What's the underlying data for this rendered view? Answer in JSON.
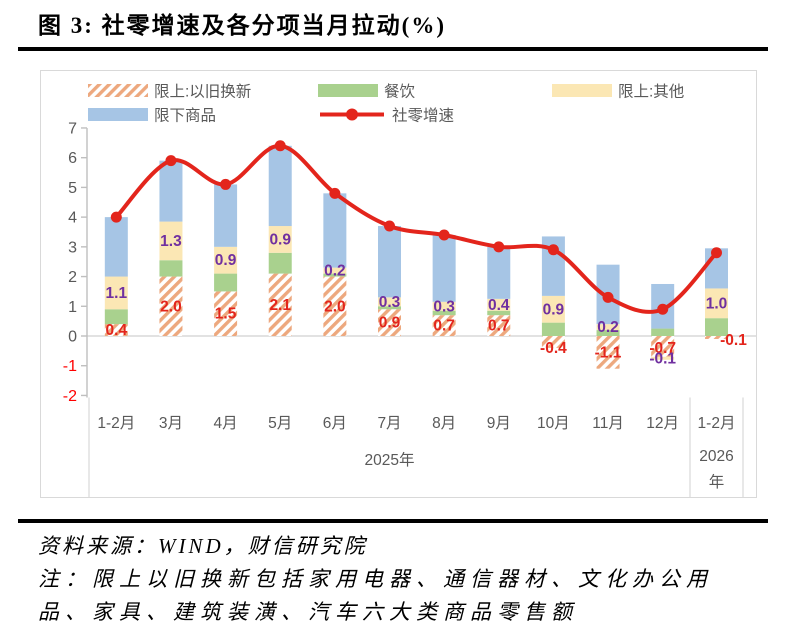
{
  "title": "图 3:  社零增速及各分项当月拉动(%)",
  "footer": {
    "source": "资料来源：WIND，财信研究院",
    "note_line1": "注：限上以旧换新包括家用电器、通信器材、文化办公用",
    "note_line2": "品、家具、建筑装潢、汽车六大类商品零售额"
  },
  "colors": {
    "hatch_stripe": "#EDA87E",
    "dining_green": "#A9D18E",
    "other_yellow": "#FBE7B4",
    "below_blue": "#A6C5E5",
    "line_red": "#E3251C",
    "label_purple": "#7030A0",
    "text_gray": "#595959",
    "axis_gray": "#BFBFBF",
    "grid_gray": "#D9D9D9",
    "neg_tick_red": "#FF0000"
  },
  "chart_data": {
    "type": "combo: stacked bar + smoothed line",
    "title": "社零增速及各分项当月拉动(%)",
    "categories": [
      "1-2月",
      "3月",
      "4月",
      "5月",
      "6月",
      "7月",
      "8月",
      "9月",
      "10月",
      "11月",
      "12月",
      "1-2月"
    ],
    "category_groups": [
      {
        "label": "2025年",
        "from": 0,
        "to": 10
      },
      {
        "label": "2026年",
        "from": 11,
        "to": 11
      }
    ],
    "ylim": [
      -2,
      7
    ],
    "yticks": [
      7,
      6,
      5,
      4,
      3,
      2,
      1,
      0,
      -1,
      -2
    ],
    "grid": "zero-line only",
    "legend_position": "top inside, two rows",
    "bar_series": [
      {
        "name": "限上:以旧换新",
        "key": "trade-in",
        "style": "hatched",
        "values": [
          0.4,
          2.0,
          1.5,
          2.1,
          2.0,
          0.9,
          0.7,
          0.7,
          -0.4,
          -1.1,
          -0.7,
          -0.1
        ],
        "show_labels": true,
        "label_color_key": "line_red"
      },
      {
        "name": "餐饮",
        "key": "catering",
        "color_key": "dining_green",
        "values": [
          0.5,
          0.55,
          0.6,
          0.7,
          0.1,
          0.1,
          0.15,
          0.15,
          0.45,
          0.2,
          0.25,
          0.6
        ],
        "show_labels": false
      },
      {
        "name": "限上:其他",
        "key": "limit-above-other",
        "color_key": "other_yellow",
        "values": [
          1.1,
          1.3,
          0.9,
          0.9,
          0.2,
          0.3,
          0.3,
          0.4,
          0.9,
          0.2,
          -0.1,
          1.0
        ],
        "show_labels": true,
        "label_color_key": "label_purple"
      },
      {
        "name": "限下商品",
        "key": "limit-below-goods",
        "color_key": "below_blue",
        "values": [
          2.0,
          2.05,
          2.1,
          2.7,
          2.5,
          2.4,
          2.25,
          1.75,
          2.0,
          2.0,
          1.5,
          1.35
        ],
        "show_labels": false
      }
    ],
    "line_series": {
      "name": "社零增速",
      "key": "retail-growth",
      "color_key": "line_red",
      "values": [
        4.0,
        5.9,
        5.1,
        6.4,
        4.8,
        3.7,
        3.4,
        3.0,
        2.9,
        1.3,
        0.9,
        2.8
      ]
    }
  }
}
